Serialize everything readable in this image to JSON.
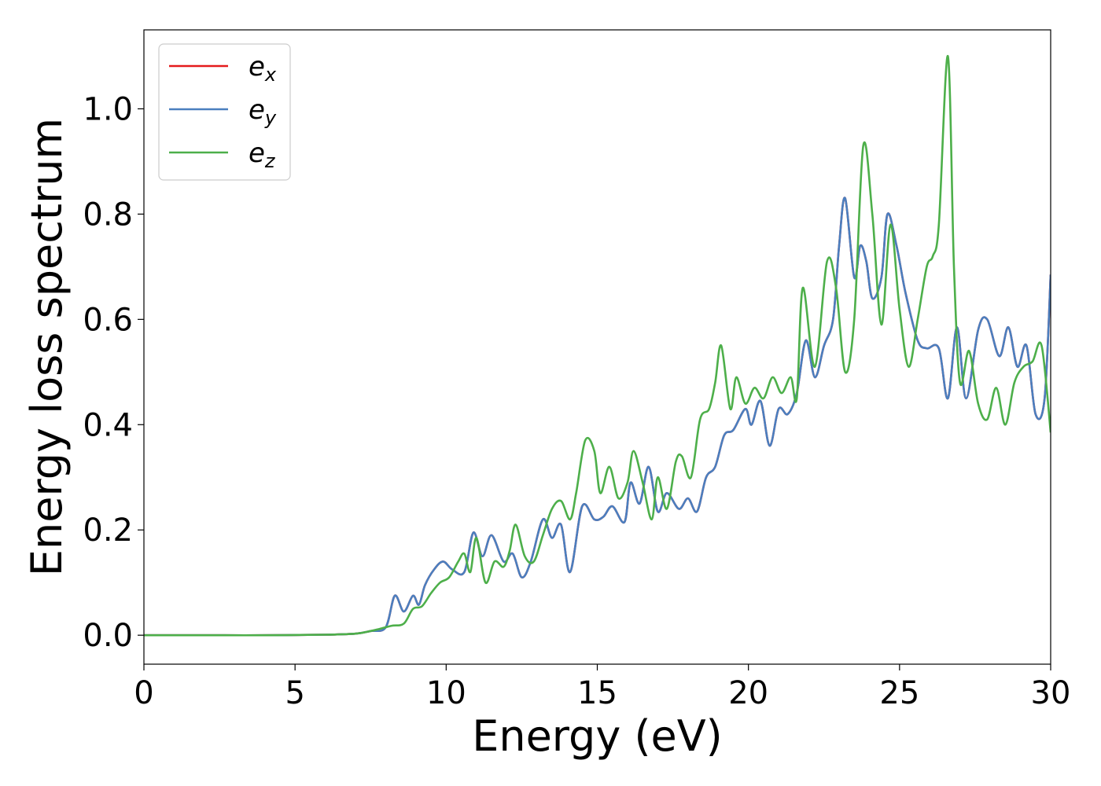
{
  "chart_data": {
    "type": "line",
    "xlabel": "Energy (eV)",
    "ylabel": "Energy loss spectrum",
    "xlim": [
      0,
      30
    ],
    "ylim": [
      -0.055,
      1.15
    ],
    "xticks": [
      0,
      5,
      10,
      15,
      20,
      25,
      30
    ],
    "xtick_labels": [
      "0",
      "5",
      "10",
      "15",
      "20",
      "25",
      "30"
    ],
    "yticks": [
      0.0,
      0.2,
      0.4,
      0.6,
      0.8,
      1.0
    ],
    "ytick_labels": [
      "0.0",
      "0.2",
      "0.4",
      "0.6",
      "0.8",
      "1.0"
    ],
    "grid": false,
    "legend_position": "top-left",
    "series": [
      {
        "name": "e_x",
        "legend_main": "e",
        "legend_sub": "x",
        "color": "#e41a1c",
        "x": [
          0,
          2,
          4,
          6,
          7,
          7.5,
          8,
          8.3,
          8.6,
          8.9,
          9.1,
          9.3,
          9.6,
          9.9,
          10.2,
          10.6,
          10.9,
          11.2,
          11.5,
          11.9,
          12.2,
          12.5,
          12.8,
          13.2,
          13.5,
          13.8,
          14.1,
          14.5,
          14.9,
          15.2,
          15.5,
          15.9,
          16.1,
          16.4,
          16.7,
          17.0,
          17.3,
          17.7,
          18.0,
          18.3,
          18.6,
          18.9,
          19.2,
          19.5,
          19.9,
          20.1,
          20.4,
          20.7,
          21.0,
          21.3,
          21.6,
          21.9,
          22.2,
          22.5,
          22.8,
          23.0,
          23.2,
          23.5,
          23.7,
          23.9,
          24.1,
          24.4,
          24.6,
          24.9,
          25.2,
          25.6,
          25.9,
          26.3,
          26.6,
          26.9,
          27.2,
          27.6,
          27.9,
          28.3,
          28.6,
          28.9,
          29.2,
          29.5,
          29.8,
          30.0
        ],
        "y": [
          0.0,
          0.0,
          0.0,
          0.001,
          0.003,
          0.008,
          0.015,
          0.075,
          0.045,
          0.075,
          0.058,
          0.095,
          0.125,
          0.14,
          0.125,
          0.12,
          0.195,
          0.15,
          0.19,
          0.14,
          0.155,
          0.11,
          0.14,
          0.22,
          0.185,
          0.21,
          0.12,
          0.245,
          0.22,
          0.225,
          0.245,
          0.215,
          0.29,
          0.25,
          0.32,
          0.235,
          0.27,
          0.24,
          0.26,
          0.235,
          0.3,
          0.32,
          0.38,
          0.39,
          0.43,
          0.4,
          0.445,
          0.36,
          0.43,
          0.42,
          0.46,
          0.56,
          0.49,
          0.55,
          0.6,
          0.74,
          0.83,
          0.68,
          0.74,
          0.71,
          0.64,
          0.68,
          0.8,
          0.74,
          0.65,
          0.56,
          0.545,
          0.545,
          0.45,
          0.585,
          0.45,
          0.58,
          0.6,
          0.53,
          0.585,
          0.51,
          0.55,
          0.42,
          0.45,
          0.685
        ]
      },
      {
        "name": "e_y",
        "legend_main": "e",
        "legend_sub": "y",
        "color": "#4a7fbf",
        "x": [
          0,
          2,
          4,
          6,
          7,
          7.5,
          8,
          8.3,
          8.6,
          8.9,
          9.1,
          9.3,
          9.6,
          9.9,
          10.2,
          10.6,
          10.9,
          11.2,
          11.5,
          11.9,
          12.2,
          12.5,
          12.8,
          13.2,
          13.5,
          13.8,
          14.1,
          14.5,
          14.9,
          15.2,
          15.5,
          15.9,
          16.1,
          16.4,
          16.7,
          17.0,
          17.3,
          17.7,
          18.0,
          18.3,
          18.6,
          18.9,
          19.2,
          19.5,
          19.9,
          20.1,
          20.4,
          20.7,
          21.0,
          21.3,
          21.6,
          21.9,
          22.2,
          22.5,
          22.8,
          23.0,
          23.2,
          23.5,
          23.7,
          23.9,
          24.1,
          24.4,
          24.6,
          24.9,
          25.2,
          25.6,
          25.9,
          26.3,
          26.6,
          26.9,
          27.2,
          27.6,
          27.9,
          28.3,
          28.6,
          28.9,
          29.2,
          29.5,
          29.8,
          30.0
        ],
        "y": [
          0.0,
          0.0,
          0.0,
          0.001,
          0.003,
          0.008,
          0.015,
          0.075,
          0.045,
          0.075,
          0.058,
          0.095,
          0.125,
          0.14,
          0.125,
          0.12,
          0.195,
          0.15,
          0.19,
          0.14,
          0.155,
          0.11,
          0.14,
          0.22,
          0.185,
          0.21,
          0.12,
          0.245,
          0.22,
          0.225,
          0.245,
          0.215,
          0.29,
          0.25,
          0.32,
          0.235,
          0.27,
          0.24,
          0.26,
          0.235,
          0.3,
          0.32,
          0.38,
          0.39,
          0.43,
          0.4,
          0.445,
          0.36,
          0.43,
          0.42,
          0.46,
          0.56,
          0.49,
          0.55,
          0.6,
          0.74,
          0.83,
          0.68,
          0.74,
          0.71,
          0.64,
          0.68,
          0.8,
          0.74,
          0.65,
          0.56,
          0.545,
          0.545,
          0.45,
          0.585,
          0.45,
          0.58,
          0.6,
          0.53,
          0.585,
          0.51,
          0.55,
          0.42,
          0.45,
          0.685
        ]
      },
      {
        "name": "e_z",
        "legend_main": "e",
        "legend_sub": "z",
        "color": "#4daf4a",
        "x": [
          0,
          2,
          4,
          6,
          7,
          7.5,
          7.8,
          8.2,
          8.6,
          8.9,
          9.2,
          9.5,
          9.8,
          10.1,
          10.4,
          10.6,
          10.8,
          11.0,
          11.3,
          11.6,
          11.9,
          12.1,
          12.3,
          12.6,
          12.9,
          13.2,
          13.5,
          13.8,
          14.1,
          14.3,
          14.6,
          14.9,
          15.1,
          15.4,
          15.7,
          16.0,
          16.2,
          16.5,
          16.8,
          17.0,
          17.3,
          17.6,
          17.8,
          18.1,
          18.4,
          18.7,
          18.9,
          19.1,
          19.4,
          19.6,
          19.9,
          20.2,
          20.5,
          20.8,
          21.1,
          21.4,
          21.6,
          21.8,
          22.2,
          22.6,
          22.9,
          23.2,
          23.5,
          23.8,
          24.1,
          24.4,
          24.7,
          25.0,
          25.3,
          25.6,
          25.9,
          26.1,
          26.3,
          26.6,
          26.8,
          27.0,
          27.3,
          27.6,
          27.9,
          28.2,
          28.5,
          28.8,
          29.1,
          29.4,
          29.7,
          30.0
        ],
        "y": [
          0.0,
          0.0,
          0.0,
          0.001,
          0.003,
          0.008,
          0.012,
          0.018,
          0.022,
          0.05,
          0.055,
          0.08,
          0.1,
          0.11,
          0.14,
          0.155,
          0.12,
          0.185,
          0.1,
          0.14,
          0.13,
          0.16,
          0.21,
          0.15,
          0.14,
          0.19,
          0.24,
          0.255,
          0.22,
          0.27,
          0.37,
          0.35,
          0.27,
          0.32,
          0.26,
          0.29,
          0.35,
          0.29,
          0.22,
          0.3,
          0.24,
          0.33,
          0.34,
          0.3,
          0.41,
          0.43,
          0.48,
          0.55,
          0.43,
          0.49,
          0.44,
          0.47,
          0.45,
          0.49,
          0.46,
          0.49,
          0.45,
          0.66,
          0.51,
          0.71,
          0.66,
          0.5,
          0.6,
          0.93,
          0.8,
          0.59,
          0.78,
          0.62,
          0.51,
          0.6,
          0.7,
          0.72,
          0.78,
          1.1,
          0.7,
          0.48,
          0.54,
          0.44,
          0.41,
          0.47,
          0.4,
          0.48,
          0.51,
          0.52,
          0.55,
          0.385
        ]
      }
    ]
  }
}
